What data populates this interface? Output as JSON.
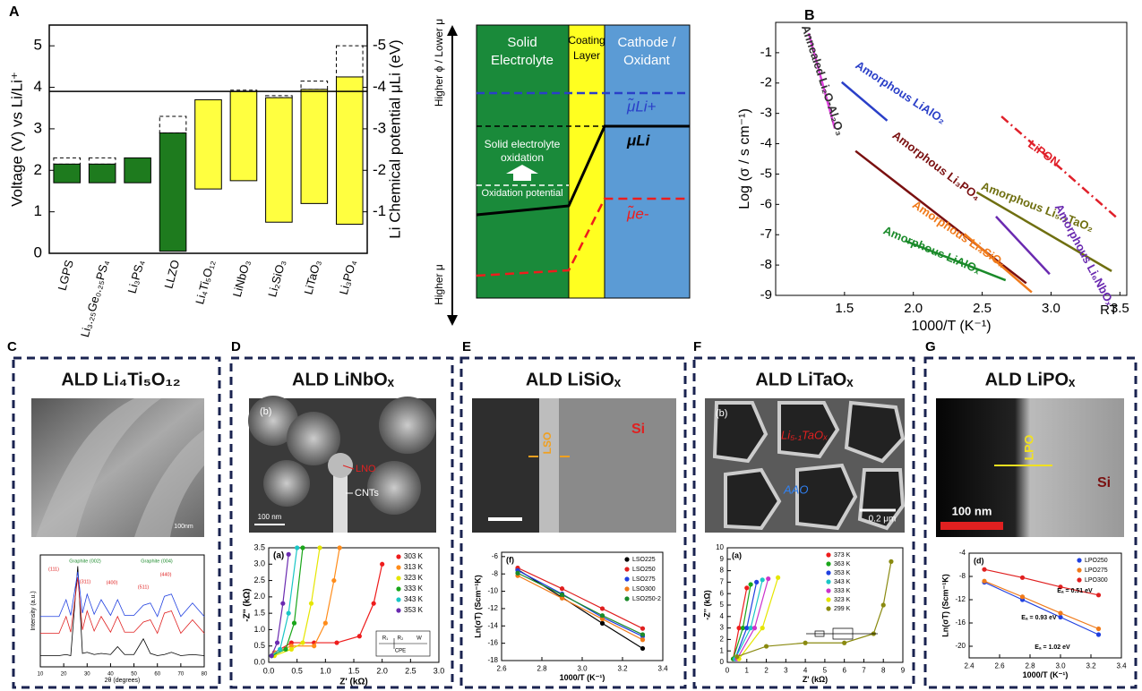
{
  "panel_a": {
    "label": "A",
    "type": "bar",
    "ylabel": "Voltage (V) vs Li/Li⁺",
    "y2label": "Li Chemical potential μLi (eV)",
    "categories": [
      "LGPS",
      "Li₃.₂₅Ge₀.₂₅PS₄",
      "Li₃PS₄",
      "LLZO",
      "Li₄Ti₅O₁₂",
      "LiNbO₃",
      "Li₂SiO₃",
      "LiTaO₃",
      "Li₃PO₄"
    ],
    "low": [
      1.7,
      1.7,
      1.7,
      0.05,
      1.55,
      1.75,
      0.75,
      1.2,
      0.7
    ],
    "high": [
      2.15,
      2.15,
      2.3,
      2.9,
      3.7,
      3.9,
      3.75,
      3.95,
      4.25
    ],
    "dashed_top": [
      2.3,
      2.3,
      null,
      3.3,
      null,
      3.93,
      3.8,
      4.15,
      5.0
    ],
    "colors": [
      "#1e7b1e",
      "#1e7b1e",
      "#1e7b1e",
      "#1e7b1e",
      "#ffff40",
      "#ffff40",
      "#ffff40",
      "#ffff40",
      "#ffff40"
    ],
    "reference_line": 3.9,
    "ylim": [
      0,
      5.5
    ],
    "yticks": [
      0,
      1,
      2,
      3,
      4,
      5
    ],
    "y2lim": [
      0,
      -5.5
    ],
    "y2ticks": [
      -1,
      -2,
      -3,
      -4,
      -5
    ]
  },
  "diagram": {
    "axis_top": "Higher ϕ / Lower μ",
    "axis_bottom": "Higher μ",
    "regions": [
      [
        "Solid",
        "Electrolyte"
      ],
      [
        "Coating",
        "Layer"
      ],
      [
        "Cathode /",
        "Oxidant"
      ]
    ],
    "oxidation": [
      "Solid electrolyte",
      "oxidation"
    ],
    "oxidation_potential": "Oxidation potential",
    "mu_li_plus": "μ̃Li+",
    "mu_li": "μLi",
    "mu_e": "μ̃e-"
  },
  "panel_b": {
    "label": "B",
    "type": "line",
    "xlabel": "1000/T (K⁻¹)",
    "ylabel": "Log (σ / s cm⁻¹)",
    "rt_label": "RT",
    "xlim": [
      1.0,
      3.55
    ],
    "ylim": [
      -9,
      0
    ],
    "xticks": [
      1.5,
      {
        "value": 2.0,
        "label": "2.0"
      },
      2.5,
      {
        "value": 3.0,
        "label": "3.0"
      },
      3.5
    ],
    "yticks": [
      -1,
      -2,
      -3,
      -4,
      -5,
      -6,
      -7,
      -8,
      -9
    ],
    "series": [
      {
        "name": "Annealed Li₂O-Al₂O₃",
        "color": "#e040e0",
        "x": [
          1.24,
          1.43
        ],
        "values": [
          -0.36,
          -3.5
        ]
      },
      {
        "name": "Amorphous LiAlO₂",
        "color": "#2a3fc8",
        "x": [
          1.48,
          1.81
        ],
        "values": [
          -1.97,
          -3.24
        ]
      },
      {
        "name": "LiPON",
        "color": "#e0202a",
        "dash": true,
        "x": [
          2.64,
          3.48
        ],
        "values": [
          -3.1,
          -6.45
        ]
      },
      {
        "name": "Amorphous Li₃PO₄",
        "color": "#7a1010",
        "x": [
          1.58,
          2.82
        ],
        "values": [
          -4.24,
          -8.6
        ]
      },
      {
        "name": "Amorphous Li₅.₁TaO₂",
        "color": "#6f6f10",
        "x": [
          2.46,
          3.44
        ],
        "values": [
          -5.6,
          -8.2
        ]
      },
      {
        "name": "Amorphous Li₄SiOₓ",
        "color": "#f07a1a",
        "x": [
          2.37,
          2.86
        ],
        "values": [
          -6.97,
          -8.9
        ]
      },
      {
        "name": "Amorphous LiAlOₓ",
        "color": "#1a8a2a",
        "x": [
          1.94,
          2.67
        ],
        "values": [
          -7.2,
          -8.5
        ]
      },
      {
        "name": "Amorphous Li₆NbOₓ",
        "color": "#6a2ab0",
        "x": [
          2.6,
          2.99
        ],
        "values": [
          -6.4,
          -8.3
        ]
      }
    ]
  },
  "panel_c": {
    "label": "C",
    "title": "ALD Li₄Ti₅O₁₂",
    "image_texts": [
      "100nm"
    ],
    "chart": {
      "type": "line",
      "xlabel": "2θ (degrees)",
      "ylabel": "Intensity (a.u.)",
      "annotations": [
        "Graphite (002)",
        "Graphite (004)",
        "(111)",
        "(311)",
        "(400)",
        "(511)",
        "(440)"
      ],
      "xlim": [
        10,
        80
      ],
      "ylim": [
        0,
        10
      ],
      "xticks": [
        10,
        20,
        30,
        40,
        50,
        60,
        70,
        80
      ],
      "yticks": [],
      "series": [
        {
          "color": "#000000",
          "x": [
            10,
            18,
            21,
            23,
            26,
            28,
            30,
            33,
            36,
            40,
            43,
            46,
            50,
            54,
            57,
            60,
            63,
            66,
            70,
            75,
            80
          ],
          "values": [
            1,
            1,
            1.1,
            1,
            9,
            1.2,
            1.3,
            1.1,
            1.2,
            1.1,
            1.8,
            1.1,
            1.1,
            2.5,
            1.2,
            1,
            1.1,
            1.3,
            1,
            1.1,
            1
          ]
        },
        {
          "color": "#e02020",
          "x": [
            10,
            18,
            21,
            23,
            26,
            28,
            30,
            33,
            36,
            40,
            43,
            46,
            50,
            54,
            57,
            60,
            63,
            66,
            70,
            75,
            80
          ],
          "values": [
            3,
            3,
            4.5,
            3.1,
            8,
            3.3,
            5,
            3.2,
            4.5,
            3.1,
            4.5,
            3.1,
            3.1,
            4,
            4.2,
            3,
            4.8,
            5,
            3,
            4.2,
            3
          ]
        },
        {
          "color": "#2040e0",
          "x": [
            10,
            18,
            21,
            23,
            26,
            28,
            30,
            33,
            36,
            40,
            43,
            46,
            50,
            54,
            57,
            60,
            63,
            66,
            70,
            75,
            80
          ],
          "values": [
            4.5,
            4.5,
            6,
            4.6,
            8.5,
            4.8,
            6.5,
            4.7,
            6,
            4.6,
            6,
            4.6,
            4.6,
            5.5,
            5.7,
            4.5,
            6.3,
            6.5,
            4.5,
            5.7,
            4.5
          ]
        }
      ]
    }
  },
  "panel_d": {
    "label": "D",
    "title": "ALD LiNbOₓ",
    "image_texts": [
      "(b)",
      "LNO",
      "CNTs",
      "100 nm"
    ],
    "chart": {
      "type": "scatter",
      "subtitle": "(a)",
      "xlabel": "Z' (kΩ)",
      "ylabel": "-Z'' (kΩ)",
      "circuit": [
        "R₁",
        "R₂",
        "CPE",
        "W"
      ],
      "xlim": [
        0,
        3
      ],
      "ylim": [
        0,
        3.5
      ],
      "xticks": [
        {
          "value": 0,
          "label": "0.0"
        },
        {
          "value": 0.5,
          "label": "0.5"
        },
        {
          "value": 1,
          "label": "1.0"
        },
        {
          "value": 1.5,
          "label": "1.5"
        },
        {
          "value": 2,
          "label": "2.0"
        },
        {
          "value": 2.5,
          "label": "2.5"
        },
        {
          "value": 3,
          "label": "3.0"
        }
      ],
      "yticks": [
        {
          "value": 0,
          "label": "0.0"
        },
        {
          "value": 0.5,
          "label": "0.5"
        },
        {
          "value": 1,
          "label": "1.0"
        },
        {
          "value": 1.5,
          "label": "1.5"
        },
        {
          "value": 2,
          "label": "2.0"
        },
        {
          "value": 2.5,
          "label": "2.5"
        },
        {
          "value": 3,
          "label": "3.0"
        },
        {
          "value": 3.5,
          "label": "3.5"
        }
      ],
      "series": [
        {
          "name": "303 K",
          "color": "#ee1c1c",
          "x": [
            0.1,
            0.4,
            0.8,
            1.2,
            1.6,
            1.85,
            2.0
          ],
          "values": [
            0.3,
            0.6,
            0.6,
            0.6,
            0.8,
            1.8,
            3.0
          ]
        },
        {
          "name": "313 K",
          "color": "#ff8c1a",
          "x": [
            0.1,
            0.4,
            0.8,
            1.0,
            1.15,
            1.25
          ],
          "values": [
            0.3,
            0.5,
            0.5,
            1.2,
            2.5,
            3.5
          ]
        },
        {
          "name": "323 K",
          "color": "#e6e600",
          "x": [
            0.1,
            0.4,
            0.6,
            0.75,
            0.9
          ],
          "values": [
            0.2,
            0.4,
            0.6,
            1.8,
            3.5
          ]
        },
        {
          "name": "333 K",
          "color": "#1aa61a",
          "x": [
            0.05,
            0.3,
            0.45,
            0.6
          ],
          "values": [
            0.2,
            0.4,
            1.2,
            3.5
          ]
        },
        {
          "name": "343 K",
          "color": "#1ac6c6",
          "x": [
            0.05,
            0.2,
            0.35,
            0.5
          ],
          "values": [
            0.2,
            0.4,
            1.5,
            3.5
          ]
        },
        {
          "name": "353 K",
          "color": "#6a2ab0",
          "x": [
            0.05,
            0.15,
            0.25,
            0.35
          ],
          "values": [
            0.2,
            0.6,
            1.8,
            3.3
          ]
        }
      ]
    }
  },
  "panel_e": {
    "label": "E",
    "title": "ALD LiSiOₓ",
    "image_texts": [
      "LSO",
      "Si"
    ],
    "chart": {
      "type": "scatter",
      "subtitle": "(f)",
      "xlabel": "1000/T (K⁻¹)",
      "ylabel": "Ln(σT) (Scm⁻¹K)",
      "xlim": [
        2.6,
        3.4
      ],
      "ylim": [
        -18,
        -5.5
      ],
      "xticks": [
        2.6,
        2.8,
        {
          "value": 3.0,
          "label": "3.0"
        },
        3.2,
        3.4
      ],
      "yticks": [
        -18,
        -16,
        -14,
        -12,
        -10,
        -8,
        -6
      ],
      "series": [
        {
          "name": "LSO225",
          "color": "#000000",
          "x": [
            2.68,
            2.9,
            3.1,
            3.3
          ],
          "values": [
            -7.5,
            -10.7,
            -13.7,
            -16.6
          ]
        },
        {
          "name": "LSO250",
          "color": "#e02020",
          "x": [
            2.68,
            2.9,
            3.1,
            3.3
          ],
          "values": [
            -7.3,
            -9.7,
            -12.0,
            -14.3
          ]
        },
        {
          "name": "LSO275",
          "color": "#2040e0",
          "x": [
            2.68,
            2.9,
            3.1,
            3.3
          ],
          "values": [
            -7.6,
            -10.3,
            -13.0,
            -15.2
          ]
        },
        {
          "name": "LSO300",
          "color": "#f07a1a",
          "x": [
            2.68,
            2.9,
            3.1,
            3.3
          ],
          "values": [
            -8.2,
            -10.8,
            -13.2,
            -15.6
          ]
        },
        {
          "name": "LSO250-2",
          "color": "#1a8a2a",
          "x": [
            2.68,
            2.9,
            3.1,
            3.3
          ],
          "values": [
            -7.9,
            -10.4,
            -12.8,
            -15.0
          ]
        }
      ]
    }
  },
  "panel_f": {
    "label": "F",
    "title": "ALD LiTaOₓ",
    "image_texts": [
      "(b)",
      "Li₅.₁TaOₓ",
      "AAO",
      "0.2 μm"
    ],
    "chart": {
      "type": "scatter",
      "subtitle": "(a)",
      "xlabel": "Z' (kΩ)",
      "ylabel": "-Z'' (kΩ)",
      "xlim": [
        0,
        9
      ],
      "ylim": [
        0,
        10
      ],
      "xticks": [
        0,
        1,
        2,
        3,
        4,
        5,
        6,
        7,
        8,
        9
      ],
      "yticks": [
        0,
        1,
        2,
        3,
        4,
        5,
        6,
        7,
        8,
        9,
        10
      ],
      "series": [
        {
          "name": "373 K",
          "color": "#ee1c1c",
          "x": [
            0.3,
            0.6,
            1.0
          ],
          "values": [
            0.3,
            3,
            6.5
          ]
        },
        {
          "name": "363 K",
          "color": "#1aa61a",
          "x": [
            0.3,
            0.8,
            1.2
          ],
          "values": [
            0.3,
            3,
            6.8
          ]
        },
        {
          "name": "353 K",
          "color": "#2040e0",
          "x": [
            0.4,
            1.0,
            1.5
          ],
          "values": [
            0.3,
            3,
            7.0
          ]
        },
        {
          "name": "343 K",
          "color": "#1ac6c6",
          "x": [
            0.4,
            1.2,
            1.8
          ],
          "values": [
            0.3,
            3,
            7.2
          ]
        },
        {
          "name": "333 K",
          "color": "#cc33cc",
          "x": [
            0.5,
            1.4,
            2.1
          ],
          "values": [
            0.3,
            3,
            7.3
          ]
        },
        {
          "name": "323 K",
          "color": "#e6e600",
          "x": [
            0.6,
            1.8,
            2.6
          ],
          "values": [
            0.3,
            3,
            7.4
          ]
        },
        {
          "name": "299 K",
          "color": "#8a8a10",
          "x": [
            0.5,
            2,
            4,
            6,
            7.5,
            8,
            8.4
          ],
          "values": [
            0.5,
            1.4,
            1.7,
            1.7,
            2.5,
            5,
            8.8
          ]
        }
      ]
    }
  },
  "panel_g": {
    "label": "G",
    "title": "ALD LiPOₓ",
    "image_texts": [
      "LPO",
      "Si",
      "100 nm"
    ],
    "chart": {
      "type": "scatter",
      "subtitle": "(d)",
      "xlabel": "1000/T (K⁻¹)",
      "ylabel": "Ln(σT) (Scm⁻¹K)",
      "annotations": [
        "Eₐ = 0.51 eV",
        "Eₐ = 0.93 eV",
        "Eₐ = 1.02 eV"
      ],
      "xlim": [
        2.4,
        3.4
      ],
      "ylim": [
        -22,
        -4
      ],
      "xticks": [
        2.4,
        2.6,
        2.8,
        {
          "value": 3.0,
          "label": "3.0"
        },
        3.2,
        3.4
      ],
      "yticks": [
        -20,
        -16,
        -12,
        -8,
        -4
      ],
      "series": [
        {
          "name": "LPO250",
          "color": "#2040e0",
          "x": [
            2.5,
            2.75,
            3.0,
            3.25
          ],
          "values": [
            -9,
            -12,
            -15,
            -18
          ]
        },
        {
          "name": "LPO275",
          "color": "#f07a1a",
          "x": [
            2.5,
            2.75,
            3.0,
            3.25
          ],
          "values": [
            -8.8,
            -11.5,
            -14.3,
            -17
          ]
        },
        {
          "name": "LPO300",
          "color": "#e02020",
          "x": [
            2.5,
            2.75,
            3.0,
            3.25
          ],
          "values": [
            -6.8,
            -8.2,
            -9.8,
            -11.2
          ]
        }
      ]
    }
  }
}
